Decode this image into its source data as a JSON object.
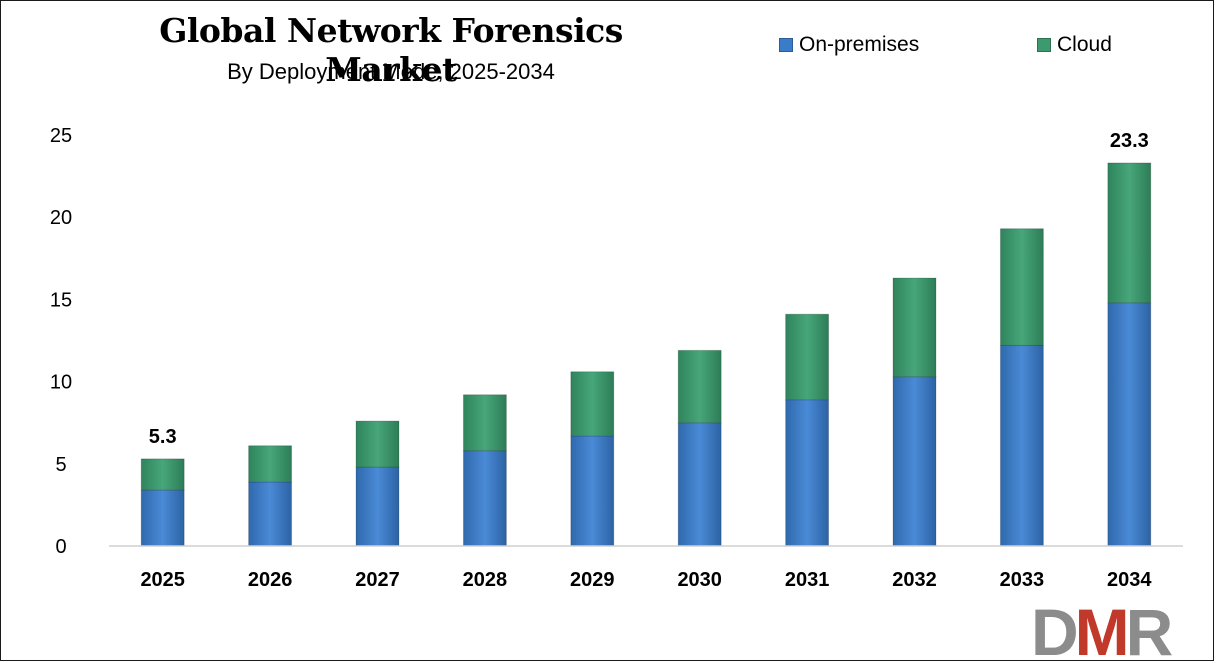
{
  "chart_data": {
    "type": "bar",
    "stacked": true,
    "title": "Global Network Forensics Market",
    "subtitle": "By Deployment Mode, 2025-2034",
    "categories": [
      "2025",
      "2026",
      "2027",
      "2028",
      "2029",
      "2030",
      "2031",
      "2032",
      "2033",
      "2034"
    ],
    "series": [
      {
        "name": "On-premises",
        "color": "#3b7cc8",
        "values": [
          3.4,
          3.9,
          4.8,
          5.8,
          6.7,
          7.5,
          8.9,
          10.3,
          12.2,
          14.8
        ]
      },
      {
        "name": "Cloud",
        "color": "#3d9a6f",
        "values": [
          1.9,
          2.2,
          2.8,
          3.4,
          3.9,
          4.4,
          5.2,
          6.0,
          7.1,
          8.5
        ]
      }
    ],
    "data_labels": [
      {
        "category": "2025",
        "text": "5.3"
      },
      {
        "category": "2034",
        "text": "23.3"
      }
    ],
    "yticks": [
      "0",
      "5",
      "10",
      "15",
      "20",
      "25"
    ],
    "ylim": [
      0,
      25
    ],
    "xlabel": "",
    "ylabel": "",
    "grid": false,
    "legend_position": "top-right"
  },
  "logo": {
    "text": "DMR",
    "colors": [
      "#8c8c8c",
      "#c0392b"
    ]
  }
}
